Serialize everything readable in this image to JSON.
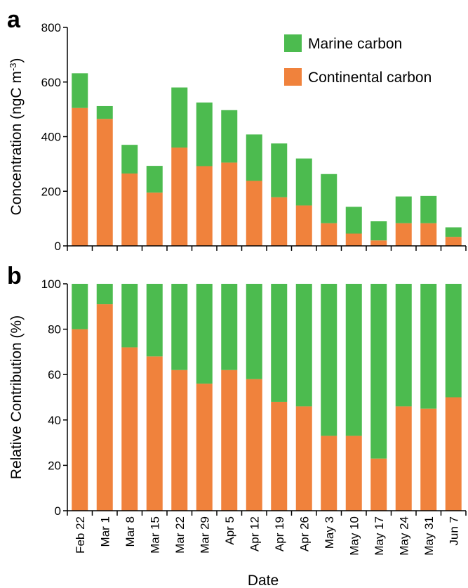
{
  "colors": {
    "marine": "#4CBB4F",
    "continental": "#F0823C"
  },
  "panel_labels": {
    "a": "a",
    "b": "b"
  },
  "chart_data": [
    {
      "type": "bar",
      "stacked": true,
      "panel": "a",
      "categories": [
        "Feb 22",
        "Mar 1",
        "Mar 8",
        "Mar 15",
        "Mar 22",
        "Mar 29",
        "Apr 5",
        "Apr 12",
        "Apr 19",
        "Apr 26",
        "May 3",
        "May 10",
        "May 17",
        "May 24",
        "May 31",
        "Jun 7"
      ],
      "series": [
        {
          "name": "Continental carbon",
          "color": "#F0823C",
          "values": [
            505,
            465,
            265,
            195,
            360,
            292,
            305,
            238,
            178,
            148,
            83,
            45,
            20,
            83,
            83,
            33
          ]
        },
        {
          "name": "Marine carbon",
          "color": "#4CBB4F",
          "values": [
            127,
            47,
            105,
            98,
            220,
            233,
            192,
            170,
            197,
            172,
            180,
            98,
            70,
            98,
            100,
            35
          ]
        }
      ],
      "title": "",
      "xlabel": "",
      "ylabel": "Concentration (ngC m",
      "ylabel_sup": "-3",
      "ylabel_end": ")",
      "ylim": [
        0,
        800
      ],
      "yticks": [
        0,
        200,
        400,
        600,
        800
      ],
      "legend": "top-right",
      "legend_entries": [
        "Marine carbon",
        "Continental carbon"
      ],
      "grid": false
    },
    {
      "type": "bar",
      "stacked": true,
      "panel": "b",
      "categories": [
        "Feb 22",
        "Mar 1",
        "Mar 8",
        "Mar 15",
        "Mar 22",
        "Mar 29",
        "Apr 5",
        "Apr 12",
        "Apr 19",
        "Apr 26",
        "May 3",
        "May 10",
        "May 17",
        "May 24",
        "May 31",
        "Jun 7"
      ],
      "series": [
        {
          "name": "Continental carbon",
          "color": "#F0823C",
          "values": [
            80,
            91,
            72,
            68,
            62,
            56,
            62,
            58,
            48,
            46,
            33,
            33,
            23,
            46,
            45,
            50
          ]
        },
        {
          "name": "Marine carbon",
          "color": "#4CBB4F",
          "values": [
            20,
            9,
            28,
            32,
            38,
            44,
            38,
            42,
            52,
            54,
            67,
            67,
            77,
            54,
            55,
            50
          ]
        }
      ],
      "title": "",
      "xlabel": "Date",
      "ylabel": "Relative Contribution (%)",
      "ylim": [
        0,
        100
      ],
      "yticks": [
        0,
        20,
        40,
        60,
        80,
        100
      ],
      "grid": false
    }
  ]
}
